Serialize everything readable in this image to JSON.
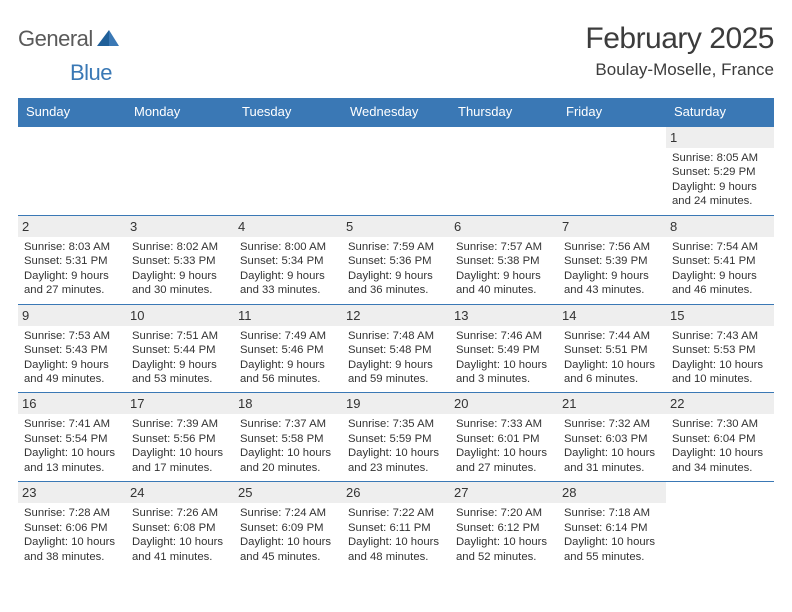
{
  "logo": {
    "part1": "General",
    "part2": "Blue"
  },
  "title": "February 2025",
  "location": "Boulay-Moselle, France",
  "colors": {
    "header_bg": "#3a78b5",
    "daynum_bg": "#eeeeee",
    "text": "#333333",
    "rule": "#3a78b5"
  },
  "day_names": [
    "Sunday",
    "Monday",
    "Tuesday",
    "Wednesday",
    "Thursday",
    "Friday",
    "Saturday"
  ],
  "weeks": [
    [
      {
        "n": "",
        "sr": "",
        "ss": "",
        "d1": "",
        "d2": "",
        "empty": true
      },
      {
        "n": "",
        "sr": "",
        "ss": "",
        "d1": "",
        "d2": "",
        "empty": true
      },
      {
        "n": "",
        "sr": "",
        "ss": "",
        "d1": "",
        "d2": "",
        "empty": true
      },
      {
        "n": "",
        "sr": "",
        "ss": "",
        "d1": "",
        "d2": "",
        "empty": true
      },
      {
        "n": "",
        "sr": "",
        "ss": "",
        "d1": "",
        "d2": "",
        "empty": true
      },
      {
        "n": "",
        "sr": "",
        "ss": "",
        "d1": "",
        "d2": "",
        "empty": true
      },
      {
        "n": "1",
        "sr": "Sunrise: 8:05 AM",
        "ss": "Sunset: 5:29 PM",
        "d1": "Daylight: 9 hours",
        "d2": "and 24 minutes."
      }
    ],
    [
      {
        "n": "2",
        "sr": "Sunrise: 8:03 AM",
        "ss": "Sunset: 5:31 PM",
        "d1": "Daylight: 9 hours",
        "d2": "and 27 minutes."
      },
      {
        "n": "3",
        "sr": "Sunrise: 8:02 AM",
        "ss": "Sunset: 5:33 PM",
        "d1": "Daylight: 9 hours",
        "d2": "and 30 minutes."
      },
      {
        "n": "4",
        "sr": "Sunrise: 8:00 AM",
        "ss": "Sunset: 5:34 PM",
        "d1": "Daylight: 9 hours",
        "d2": "and 33 minutes."
      },
      {
        "n": "5",
        "sr": "Sunrise: 7:59 AM",
        "ss": "Sunset: 5:36 PM",
        "d1": "Daylight: 9 hours",
        "d2": "and 36 minutes."
      },
      {
        "n": "6",
        "sr": "Sunrise: 7:57 AM",
        "ss": "Sunset: 5:38 PM",
        "d1": "Daylight: 9 hours",
        "d2": "and 40 minutes."
      },
      {
        "n": "7",
        "sr": "Sunrise: 7:56 AM",
        "ss": "Sunset: 5:39 PM",
        "d1": "Daylight: 9 hours",
        "d2": "and 43 minutes."
      },
      {
        "n": "8",
        "sr": "Sunrise: 7:54 AM",
        "ss": "Sunset: 5:41 PM",
        "d1": "Daylight: 9 hours",
        "d2": "and 46 minutes."
      }
    ],
    [
      {
        "n": "9",
        "sr": "Sunrise: 7:53 AM",
        "ss": "Sunset: 5:43 PM",
        "d1": "Daylight: 9 hours",
        "d2": "and 49 minutes."
      },
      {
        "n": "10",
        "sr": "Sunrise: 7:51 AM",
        "ss": "Sunset: 5:44 PM",
        "d1": "Daylight: 9 hours",
        "d2": "and 53 minutes."
      },
      {
        "n": "11",
        "sr": "Sunrise: 7:49 AM",
        "ss": "Sunset: 5:46 PM",
        "d1": "Daylight: 9 hours",
        "d2": "and 56 minutes."
      },
      {
        "n": "12",
        "sr": "Sunrise: 7:48 AM",
        "ss": "Sunset: 5:48 PM",
        "d1": "Daylight: 9 hours",
        "d2": "and 59 minutes."
      },
      {
        "n": "13",
        "sr": "Sunrise: 7:46 AM",
        "ss": "Sunset: 5:49 PM",
        "d1": "Daylight: 10 hours",
        "d2": "and 3 minutes."
      },
      {
        "n": "14",
        "sr": "Sunrise: 7:44 AM",
        "ss": "Sunset: 5:51 PM",
        "d1": "Daylight: 10 hours",
        "d2": "and 6 minutes."
      },
      {
        "n": "15",
        "sr": "Sunrise: 7:43 AM",
        "ss": "Sunset: 5:53 PM",
        "d1": "Daylight: 10 hours",
        "d2": "and 10 minutes."
      }
    ],
    [
      {
        "n": "16",
        "sr": "Sunrise: 7:41 AM",
        "ss": "Sunset: 5:54 PM",
        "d1": "Daylight: 10 hours",
        "d2": "and 13 minutes."
      },
      {
        "n": "17",
        "sr": "Sunrise: 7:39 AM",
        "ss": "Sunset: 5:56 PM",
        "d1": "Daylight: 10 hours",
        "d2": "and 17 minutes."
      },
      {
        "n": "18",
        "sr": "Sunrise: 7:37 AM",
        "ss": "Sunset: 5:58 PM",
        "d1": "Daylight: 10 hours",
        "d2": "and 20 minutes."
      },
      {
        "n": "19",
        "sr": "Sunrise: 7:35 AM",
        "ss": "Sunset: 5:59 PM",
        "d1": "Daylight: 10 hours",
        "d2": "and 23 minutes."
      },
      {
        "n": "20",
        "sr": "Sunrise: 7:33 AM",
        "ss": "Sunset: 6:01 PM",
        "d1": "Daylight: 10 hours",
        "d2": "and 27 minutes."
      },
      {
        "n": "21",
        "sr": "Sunrise: 7:32 AM",
        "ss": "Sunset: 6:03 PM",
        "d1": "Daylight: 10 hours",
        "d2": "and 31 minutes."
      },
      {
        "n": "22",
        "sr": "Sunrise: 7:30 AM",
        "ss": "Sunset: 6:04 PM",
        "d1": "Daylight: 10 hours",
        "d2": "and 34 minutes."
      }
    ],
    [
      {
        "n": "23",
        "sr": "Sunrise: 7:28 AM",
        "ss": "Sunset: 6:06 PM",
        "d1": "Daylight: 10 hours",
        "d2": "and 38 minutes."
      },
      {
        "n": "24",
        "sr": "Sunrise: 7:26 AM",
        "ss": "Sunset: 6:08 PM",
        "d1": "Daylight: 10 hours",
        "d2": "and 41 minutes."
      },
      {
        "n": "25",
        "sr": "Sunrise: 7:24 AM",
        "ss": "Sunset: 6:09 PM",
        "d1": "Daylight: 10 hours",
        "d2": "and 45 minutes."
      },
      {
        "n": "26",
        "sr": "Sunrise: 7:22 AM",
        "ss": "Sunset: 6:11 PM",
        "d1": "Daylight: 10 hours",
        "d2": "and 48 minutes."
      },
      {
        "n": "27",
        "sr": "Sunrise: 7:20 AM",
        "ss": "Sunset: 6:12 PM",
        "d1": "Daylight: 10 hours",
        "d2": "and 52 minutes."
      },
      {
        "n": "28",
        "sr": "Sunrise: 7:18 AM",
        "ss": "Sunset: 6:14 PM",
        "d1": "Daylight: 10 hours",
        "d2": "and 55 minutes."
      },
      {
        "n": "",
        "sr": "",
        "ss": "",
        "d1": "",
        "d2": "",
        "empty": true
      }
    ]
  ]
}
